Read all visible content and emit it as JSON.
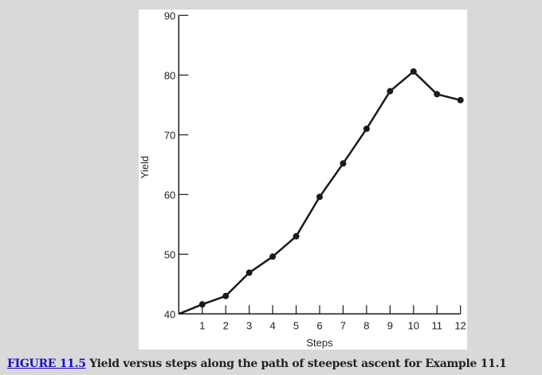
{
  "chart_data": {
    "type": "line",
    "xlabel": "Steps",
    "ylabel": "Yield",
    "xlim": [
      0,
      12
    ],
    "ylim": [
      40,
      90
    ],
    "xticks": [
      1,
      2,
      3,
      4,
      5,
      6,
      7,
      8,
      9,
      10,
      11,
      12
    ],
    "yticks": [
      40,
      50,
      60,
      70,
      80,
      90
    ],
    "grid": false,
    "series": [
      {
        "x": [
          0,
          1,
          2,
          3,
          4,
          5,
          6,
          7,
          8,
          9,
          10,
          11,
          12
        ],
        "y": [
          40,
          41.6,
          43.0,
          46.9,
          49.6,
          53.0,
          59.6,
          65.2,
          71.0,
          77.3,
          80.6,
          76.8,
          75.8
        ],
        "markers_from_index": 1
      }
    ],
    "line_color": "#1a1a1a"
  },
  "caption": {
    "figure_link": "FIGURE 11.5",
    "text": " Yield versus steps along the path of steepest ascent for Example 11.1"
  }
}
